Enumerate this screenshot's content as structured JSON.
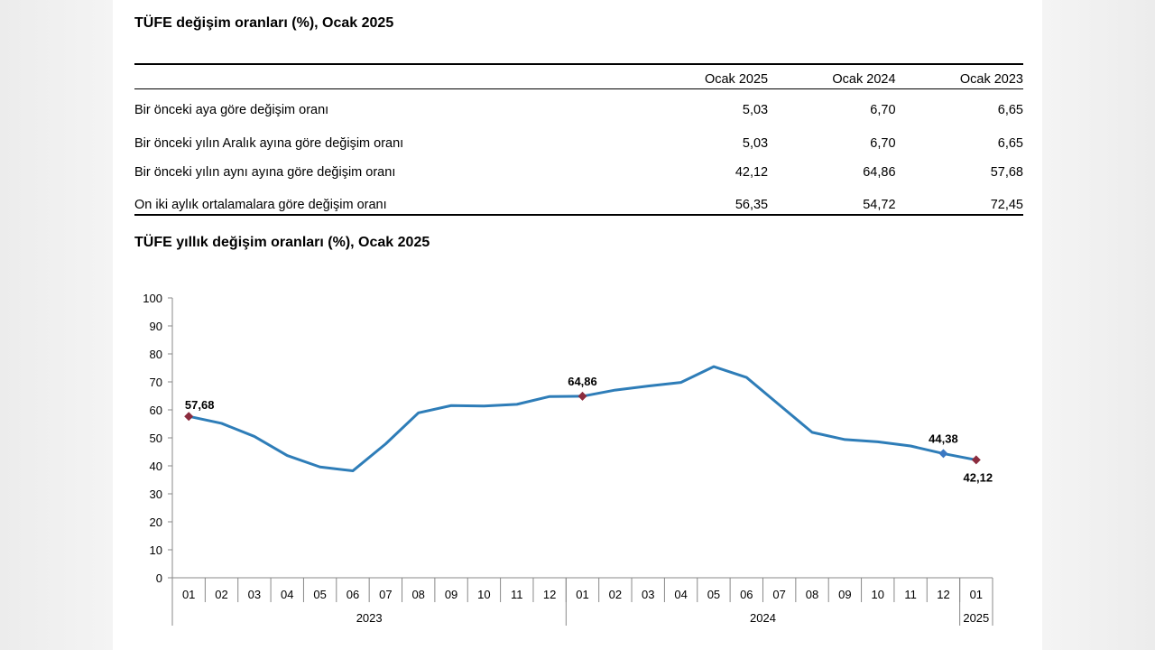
{
  "table": {
    "title": "TÜFE değişim oranları (%), Ocak 2025",
    "headers": [
      "",
      "Ocak 2025",
      "Ocak 2024",
      "Ocak 2023"
    ],
    "rows": [
      {
        "label": "Bir önceki aya göre değişim oranı",
        "values": [
          "5,03",
          "6,70",
          "6,65"
        ]
      },
      {
        "label": "Bir önceki yılın Aralık ayına göre değişim oranı",
        "values": [
          "5,03",
          "6,70",
          "6,65"
        ]
      },
      {
        "label": "Bir önceki yılın aynı ayına göre değişim oranı",
        "values": [
          "42,12",
          "64,86",
          "57,68"
        ]
      },
      {
        "label": "On iki aylık ortalamalara göre değişim oranı",
        "values": [
          "56,35",
          "54,72",
          "72,45"
        ]
      }
    ]
  },
  "chart_data": {
    "type": "line",
    "title": "TÜFE yıllık değişim oranları (%), Ocak 2025",
    "categories": [
      "01",
      "02",
      "03",
      "04",
      "05",
      "06",
      "07",
      "08",
      "09",
      "10",
      "11",
      "12",
      "01",
      "02",
      "03",
      "04",
      "05",
      "06",
      "07",
      "08",
      "09",
      "10",
      "11",
      "12",
      "01"
    ],
    "year_groups": [
      {
        "label": "2023",
        "count": 12
      },
      {
        "label": "2024",
        "count": 12
      },
      {
        "label": "2025",
        "count": 1
      }
    ],
    "series": [
      {
        "values": [
          57.68,
          55.18,
          50.51,
          43.68,
          39.59,
          38.21,
          47.83,
          58.94,
          61.53,
          61.36,
          61.98,
          64.77,
          64.86,
          67.07,
          68.5,
          69.8,
          75.45,
          71.6,
          61.78,
          51.97,
          49.38,
          48.58,
          47.09,
          44.38,
          42.12
        ],
        "color": "#2e7db8",
        "line_width": 3
      }
    ],
    "annotations": [
      {
        "index": 0,
        "label": "57,68",
        "marker_color": "#8b2c3e"
      },
      {
        "index": 12,
        "label": "64,86",
        "marker_color": "#8b2c3e"
      },
      {
        "index": 23,
        "label": "44,38",
        "marker_color": "#3b78c2"
      },
      {
        "index": 24,
        "label": "42,12",
        "marker_color": "#8b2c3e"
      }
    ],
    "ylim": [
      0,
      100
    ],
    "yticks": [
      0,
      10,
      20,
      30,
      40,
      50,
      60,
      70,
      80,
      90,
      100
    ],
    "grid": false,
    "legend": "none"
  }
}
